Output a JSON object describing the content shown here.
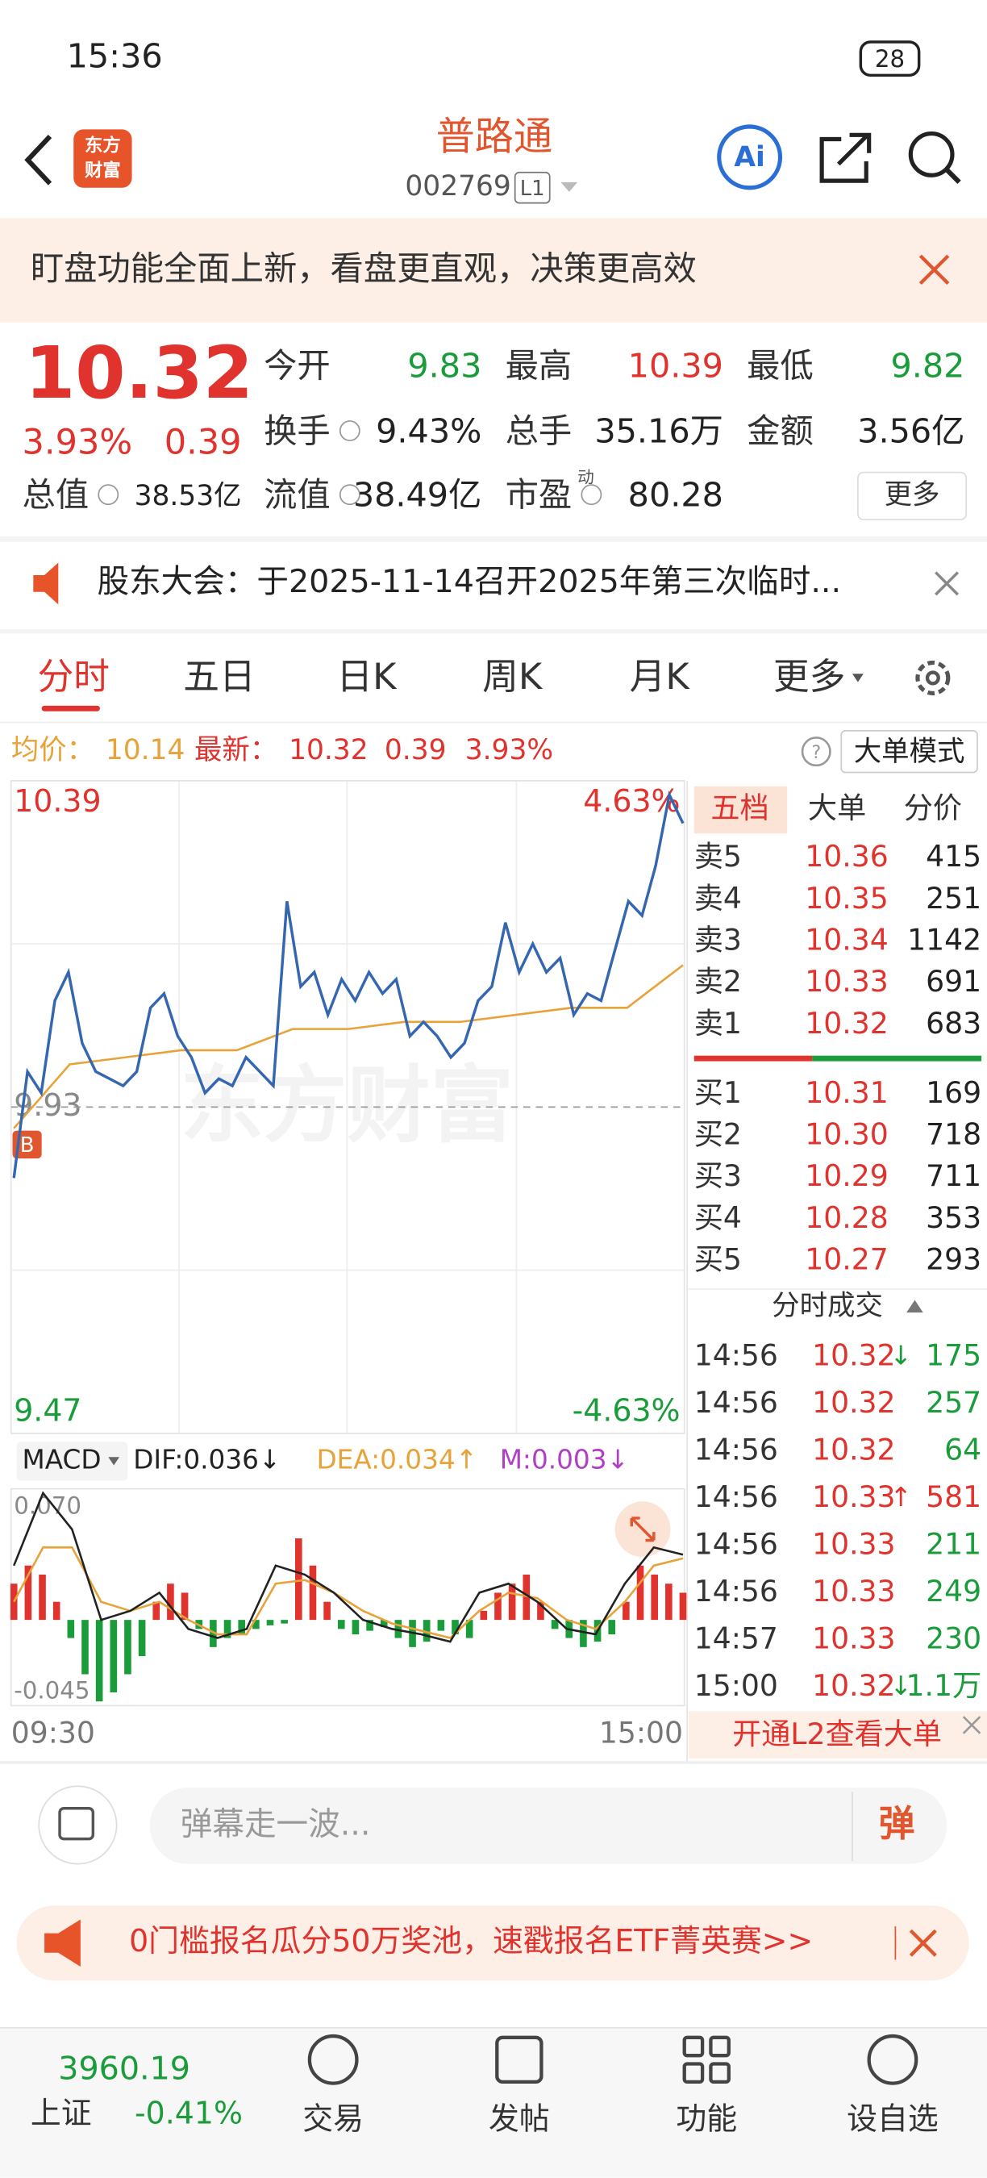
{
  "status_bar": {
    "time": "15:36",
    "battery": "28"
  },
  "header": {
    "logo": [
      "东方",
      "财富"
    ],
    "title": "普路通",
    "code": "002769",
    "level": "L1"
  },
  "banner": {
    "text": "盯盘功能全面上新，看盘更直观，决策更高效"
  },
  "quote": {
    "price": "10.32",
    "change_pct": "3.93%",
    "change": "0.39",
    "fields": [
      {
        "label": "今开",
        "value": "9.83",
        "color": "#1a9c3a"
      },
      {
        "label": "最高",
        "value": "10.39",
        "color": "#e0332e"
      },
      {
        "label": "最低",
        "value": "9.82",
        "color": "#1a9c3a"
      },
      {
        "label": "换手",
        "value": "9.43%",
        "color": "#222222"
      },
      {
        "label": "总手",
        "value": "35.16万",
        "color": "#222222"
      },
      {
        "label": "金额",
        "value": "3.56亿",
        "color": "#222222"
      },
      {
        "label": "总值",
        "value": "38.53亿",
        "color": "#222222"
      },
      {
        "label": "流值",
        "value": "38.49亿",
        "color": "#222222"
      },
      {
        "label": "市盈",
        "value": "80.28",
        "color": "#222222",
        "sup": "动"
      }
    ],
    "more": "更多"
  },
  "notice": {
    "text": "股东大会：于2025-11-14召开2025年第三次临时..."
  },
  "tabs": [
    "分时",
    "五日",
    "日K",
    "周K",
    "月K",
    "更多"
  ],
  "info_line": {
    "avg_label": "均价：",
    "avg": "10.14",
    "latest_label": "最新：",
    "latest": "10.32",
    "change": "0.39",
    "pct": "3.93%",
    "mode": "大单模式"
  },
  "chart": {
    "watermark": "东方财富",
    "badge": "B",
    "ylim": [
      9.47,
      10.39
    ],
    "yticks": [
      9.47,
      9.93,
      10.39
    ],
    "top_pct": "4.63%",
    "bottom_pct": "-4.63%",
    "price": [
      9.83,
      9.98,
      9.95,
      10.08,
      10.12,
      10.02,
      9.98,
      9.97,
      9.96,
      9.98,
      10.07,
      10.09,
      10.03,
      10.0,
      9.95,
      9.97,
      9.96,
      10.0,
      9.98,
      9.96,
      10.22,
      10.1,
      10.12,
      10.06,
      10.11,
      10.08,
      10.12,
      10.09,
      10.11,
      10.03,
      10.05,
      10.03,
      10.0,
      10.02,
      10.08,
      10.1,
      10.19,
      10.12,
      10.16,
      10.12,
      10.14,
      10.06,
      10.09,
      10.08,
      10.15,
      10.22,
      10.2,
      10.27,
      10.37,
      10.33
    ],
    "price_color": "#3566b0",
    "avg": [
      9.9,
      9.99,
      10.0,
      10.01,
      10.01,
      10.04,
      10.04,
      10.05,
      10.05,
      10.06,
      10.07,
      10.07,
      10.13
    ],
    "avg_color": "#e8a23a",
    "x_labels": [
      "09:30",
      "15:00"
    ]
  },
  "macd": {
    "label": "MACD",
    "dif": "DIF:0.036↓",
    "dea": "DEA:0.034↑",
    "m": "M:0.003↓",
    "ylim": [
      -0.045,
      0.07
    ],
    "yticks": [
      -0.045,
      {
        "value": 0.07,
        "label": "0.070"
      }
    ],
    "bars": [
      0.02,
      0.03,
      0.025,
      0.01,
      -0.01,
      -0.03,
      -0.045,
      -0.04,
      -0.03,
      -0.02,
      0.01,
      0.02,
      0.015,
      -0.005,
      -0.015,
      -0.01,
      -0.008,
      -0.005,
      -0.003,
      -0.002,
      0.045,
      0.03,
      0.01,
      -0.005,
      -0.008,
      -0.006,
      -0.004,
      -0.01,
      -0.015,
      -0.012,
      -0.006,
      -0.008,
      -0.01,
      0.005,
      0.015,
      0.02,
      0.025,
      0.01,
      -0.005,
      -0.01,
      -0.015,
      -0.012,
      -0.008,
      0.01,
      0.03,
      0.025,
      0.02,
      0.015
    ],
    "dif_line": [
      0.03,
      0.07,
      0.05,
      0.0,
      0.005,
      0.015,
      -0.005,
      -0.01,
      -0.005,
      0.03,
      0.025,
      0.015,
      0.0,
      -0.005,
      -0.008,
      -0.012,
      0.015,
      0.02,
      0.01,
      -0.005,
      -0.008,
      0.02,
      0.04,
      0.036
    ],
    "dea_line": [
      0.01,
      0.04,
      0.04,
      0.01,
      0.005,
      0.01,
      0.0,
      -0.008,
      -0.008,
      0.02,
      0.022,
      0.015,
      0.005,
      -0.002,
      -0.006,
      -0.01,
      0.005,
      0.015,
      0.012,
      0.0,
      -0.005,
      0.01,
      0.03,
      0.034
    ]
  },
  "order_book": {
    "tabs": [
      "五档",
      "大单",
      "分价"
    ],
    "sell": [
      {
        "label": "卖5",
        "price": "10.36",
        "vol": "415"
      },
      {
        "label": "卖4",
        "price": "10.35",
        "vol": "251"
      },
      {
        "label": "卖3",
        "price": "10.34",
        "vol": "1142"
      },
      {
        "label": "卖2",
        "price": "10.33",
        "vol": "691"
      },
      {
        "label": "卖1",
        "price": "10.32",
        "vol": "683"
      }
    ],
    "buy": [
      {
        "label": "买1",
        "price": "10.31",
        "vol": "169"
      },
      {
        "label": "买2",
        "price": "10.30",
        "vol": "718"
      },
      {
        "label": "买3",
        "price": "10.29",
        "vol": "711"
      },
      {
        "label": "买4",
        "price": "10.28",
        "vol": "353"
      },
      {
        "label": "买5",
        "price": "10.27",
        "vol": "293"
      }
    ]
  },
  "trades": {
    "title": "分时成交",
    "rows": [
      {
        "time": "14:56",
        "price": "10.32",
        "arrow": "↓",
        "vol": "175",
        "color": "#1a9c3a"
      },
      {
        "time": "14:56",
        "price": "10.32",
        "vol": "257",
        "color": "#1a9c3a"
      },
      {
        "time": "14:56",
        "price": "10.32",
        "vol": "64",
        "color": "#1a9c3a"
      },
      {
        "time": "14:56",
        "price": "10.33",
        "arrow": "↑",
        "vol": "581",
        "color": "#e0332e"
      },
      {
        "time": "14:56",
        "price": "10.33",
        "vol": "211",
        "color": "#1a9c3a"
      },
      {
        "time": "14:56",
        "price": "10.33",
        "vol": "249",
        "color": "#1a9c3a"
      },
      {
        "time": "14:57",
        "price": "10.33",
        "vol": "230",
        "color": "#1a9c3a"
      },
      {
        "time": "15:00",
        "price": "10.32",
        "arrow": "↓",
        "vol": "1.1万",
        "color": "#1a9c3a"
      }
    ],
    "l2": "开通L2查看大单"
  },
  "comment": {
    "placeholder": "弹幕走一波...",
    "button": "弹"
  },
  "ad": {
    "text": "0门槛报名瓜分50万奖池，速戳报名ETF菁英赛>>"
  },
  "bottom_nav": {
    "index_value": "3960.19",
    "index_name": "上证",
    "index_change": "-0.41%",
    "items": [
      "交易",
      "发帖",
      "功能",
      "设自选"
    ]
  }
}
